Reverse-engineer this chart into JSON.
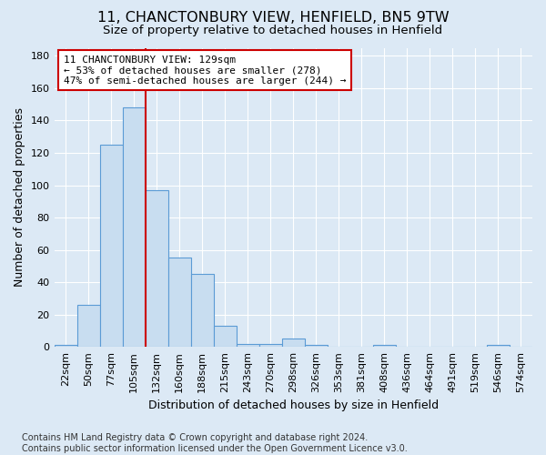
{
  "title_line1": "11, CHANCTONBURY VIEW, HENFIELD, BN5 9TW",
  "title_line2": "Size of property relative to detached houses in Henfield",
  "xlabel": "Distribution of detached houses by size in Henfield",
  "ylabel": "Number of detached properties",
  "footnote": "Contains HM Land Registry data © Crown copyright and database right 2024.\nContains public sector information licensed under the Open Government Licence v3.0.",
  "bin_labels": [
    "22sqm",
    "50sqm",
    "77sqm",
    "105sqm",
    "132sqm",
    "160sqm",
    "188sqm",
    "215sqm",
    "243sqm",
    "270sqm",
    "298sqm",
    "326sqm",
    "353sqm",
    "381sqm",
    "408sqm",
    "436sqm",
    "464sqm",
    "491sqm",
    "519sqm",
    "546sqm",
    "574sqm"
  ],
  "bar_values": [
    1,
    26,
    125,
    148,
    97,
    55,
    45,
    13,
    2,
    2,
    5,
    1,
    0,
    0,
    1,
    0,
    0,
    0,
    0,
    1,
    0
  ],
  "bar_color": "#c8ddf0",
  "bar_edge_color": "#5b9bd5",
  "vline_x_idx": 4,
  "vline_color": "#cc0000",
  "annotation_text": "11 CHANCTONBURY VIEW: 129sqm\n← 53% of detached houses are smaller (278)\n47% of semi-detached houses are larger (244) →",
  "annotation_box_color": "#ffffff",
  "annotation_box_edge": "#cc0000",
  "ylim": [
    0,
    185
  ],
  "yticks": [
    0,
    20,
    40,
    60,
    80,
    100,
    120,
    140,
    160,
    180
  ],
  "bg_color": "#dce9f5",
  "plot_bg_color": "#dce9f5",
  "grid_color": "#ffffff",
  "title_fontsize": 11.5,
  "subtitle_fontsize": 9.5,
  "axis_label_fontsize": 9,
  "tick_fontsize": 8,
  "annot_fontsize": 8,
  "footnote_fontsize": 7
}
